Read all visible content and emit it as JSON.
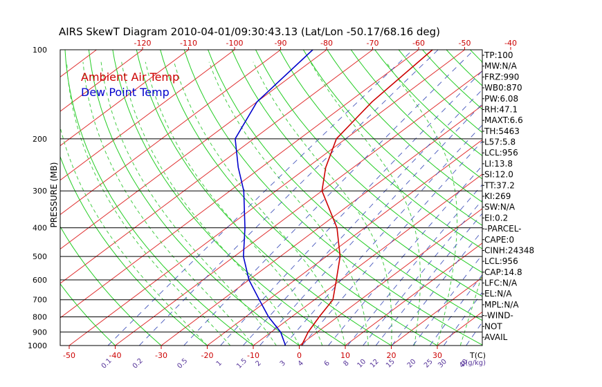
{
  "colors": {
    "temp": "#cc0000",
    "dew": "#0000cc",
    "isotherm": "#e03030",
    "dry_adiabat": "#22cc22",
    "moist_adiabat": "#44cc44",
    "mixing_ratio": "#4455bb",
    "isobar": "#000000",
    "top_labels": "#cc0000",
    "bottom_labels": "#cc0000",
    "mix_labels": "#553399"
  },
  "chart_data": {
    "type": "line",
    "title": "AIRS SkewT Diagram 2010-04-01/09:30:43.13 (Lat/Lon -50.17/68.16 deg)",
    "ylabel": "PRESSURE (MB)",
    "xlabel_unit": "T(C)",
    "mix_unit": "g(g/kg)",
    "y_scale": "log",
    "ylim": [
      1000,
      100
    ],
    "y_ticks": [
      1000,
      900,
      800,
      700,
      600,
      500,
      400,
      300,
      200,
      100
    ],
    "x_ticks_bottom": [
      -50,
      -40,
      -30,
      -20,
      -10,
      0,
      10,
      20,
      30
    ],
    "x_ticks_top": [
      -120,
      -110,
      -100,
      -90,
      -80,
      -70,
      -60,
      -50,
      -40
    ],
    "mixing_ratio_labels": [
      "0.1",
      "0.2",
      "0.5",
      "1",
      "1.5",
      "2",
      "3",
      "4",
      "6",
      "8",
      "10",
      "12",
      "15",
      "20",
      "25",
      "30",
      "40"
    ],
    "legend": [
      {
        "name": "Ambient Air Temp",
        "color": "#cc0000"
      },
      {
        "name": "Dew Point Temp",
        "color": "#0000cc"
      }
    ],
    "series": [
      {
        "name": "Ambient Air Temp",
        "points": [
          {
            "p": 1000,
            "t": 0.5
          },
          {
            "p": 900,
            "t": -2
          },
          {
            "p": 800,
            "t": -4
          },
          {
            "p": 700,
            "t": -6
          },
          {
            "p": 600,
            "t": -11
          },
          {
            "p": 500,
            "t": -17
          },
          {
            "p": 400,
            "t": -26
          },
          {
            "p": 300,
            "t": -40
          },
          {
            "p": 250,
            "t": -46
          },
          {
            "p": 200,
            "t": -52
          },
          {
            "p": 150,
            "t": -55
          },
          {
            "p": 100,
            "t": -57
          }
        ]
      },
      {
        "name": "Dew Point Temp",
        "points": [
          {
            "p": 1000,
            "t": -3
          },
          {
            "p": 900,
            "t": -8
          },
          {
            "p": 800,
            "t": -15
          },
          {
            "p": 700,
            "t": -22
          },
          {
            "p": 600,
            "t": -30
          },
          {
            "p": 500,
            "t": -38
          },
          {
            "p": 400,
            "t": -46
          },
          {
            "p": 300,
            "t": -57
          },
          {
            "p": 250,
            "t": -65
          },
          {
            "p": 200,
            "t": -74
          },
          {
            "p": 150,
            "t": -80
          },
          {
            "p": 100,
            "t": -83
          }
        ]
      }
    ]
  },
  "indices": [
    "TP:100",
    "MW:N/A",
    "FRZ:990",
    "WB0:870",
    "PW:6.08",
    "RH:47.1",
    "MAXT:6.6",
    "TH:5463",
    "L57:5.8",
    "LCL:956",
    "LI:13.8",
    "SI:12.0",
    "TT:37.2",
    "KI:269",
    "SW:N/A",
    "EI:0.2",
    "-PARCEL-",
    "CAPE:0",
    "CINH:24348",
    "LCL:956",
    "CAP:14.8",
    "LFC:N/A",
    "EL:N/A",
    "MPL:N/A",
    "-WIND-",
    "NOT",
    "AVAIL"
  ]
}
